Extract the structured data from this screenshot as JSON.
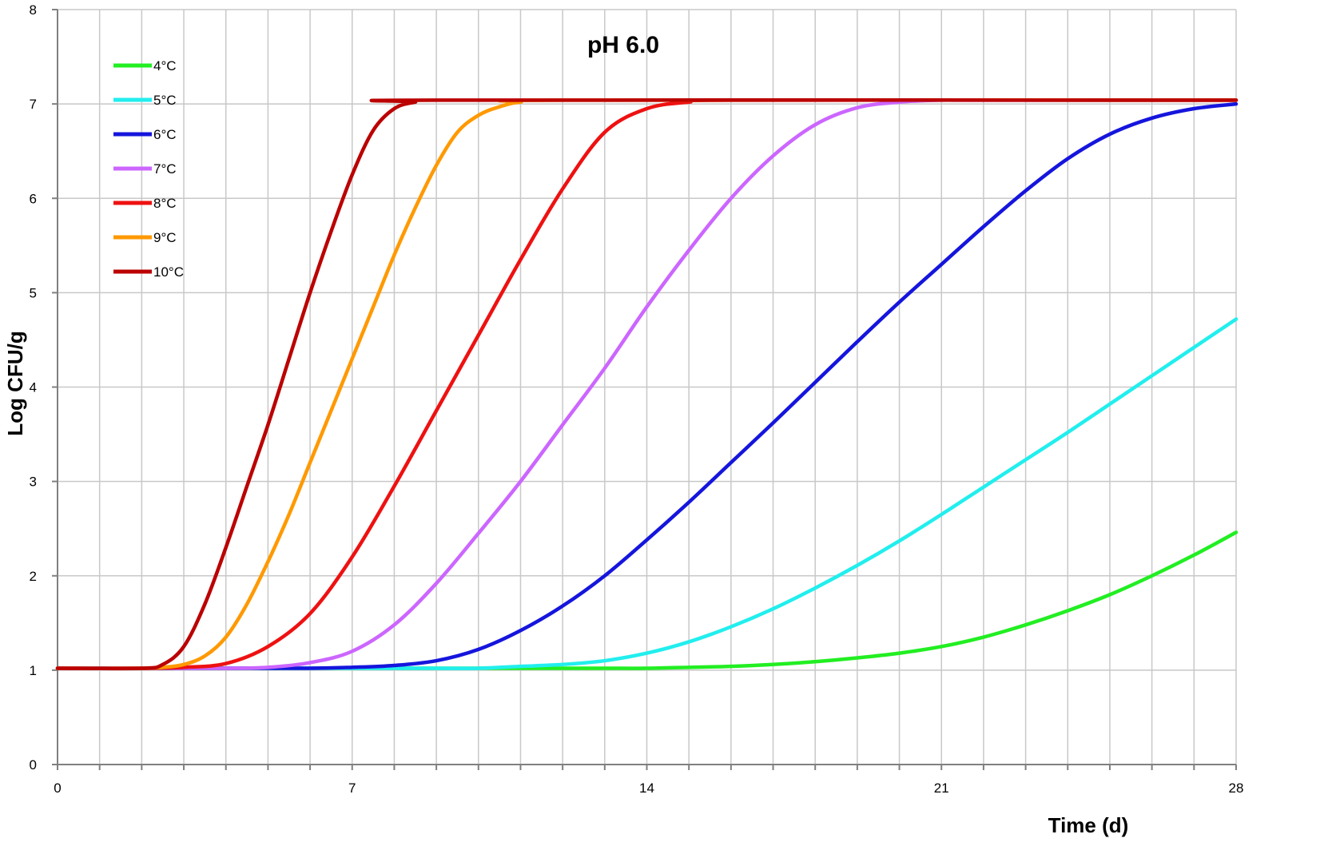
{
  "chart_data": {
    "type": "line",
    "title": "pH 6.0",
    "xlabel": "Time (d)",
    "ylabel": "Log CFU/g",
    "xlim": [
      0,
      28
    ],
    "ylim": [
      0,
      8
    ],
    "x_ticks": [
      0,
      7,
      14,
      21,
      28
    ],
    "y_ticks": [
      0,
      1,
      2,
      3,
      4,
      5,
      6,
      7,
      8
    ],
    "grid": true,
    "legend_position": "top-left",
    "series": [
      {
        "name": "4°C",
        "color": "#22EE22",
        "x": [
          0,
          2,
          4,
          6,
          8,
          10,
          12,
          13,
          14,
          15,
          16,
          17,
          18,
          19,
          20,
          21,
          22,
          23,
          24,
          25,
          26,
          27,
          28
        ],
        "values": [
          1.02,
          1.02,
          1.02,
          1.02,
          1.02,
          1.02,
          1.02,
          1.02,
          1.02,
          1.03,
          1.04,
          1.06,
          1.09,
          1.13,
          1.18,
          1.25,
          1.35,
          1.48,
          1.63,
          1.8,
          2.0,
          2.22,
          2.46
        ]
      },
      {
        "name": "5°C",
        "color": "#22EEEE",
        "x": [
          0,
          2,
          4,
          6,
          8,
          9,
          10,
          11,
          12,
          13,
          14,
          15,
          16,
          17,
          18,
          19,
          20,
          21,
          22,
          23,
          24,
          25,
          26,
          27,
          28
        ],
        "values": [
          1.02,
          1.02,
          1.02,
          1.02,
          1.02,
          1.02,
          1.02,
          1.04,
          1.06,
          1.1,
          1.18,
          1.3,
          1.46,
          1.65,
          1.87,
          2.11,
          2.37,
          2.65,
          2.94,
          3.23,
          3.52,
          3.82,
          4.12,
          4.42,
          4.72
        ]
      },
      {
        "name": "6°C",
        "color": "#1515DD",
        "x": [
          0,
          2,
          4,
          6,
          7,
          8,
          9,
          10,
          11,
          12,
          13,
          14,
          15,
          16,
          17,
          18,
          19,
          20,
          21,
          22,
          23,
          24,
          25,
          26,
          27,
          28
        ],
        "values": [
          1.02,
          1.02,
          1.02,
          1.02,
          1.03,
          1.05,
          1.1,
          1.22,
          1.42,
          1.68,
          2.0,
          2.38,
          2.78,
          3.2,
          3.62,
          4.05,
          4.48,
          4.9,
          5.3,
          5.7,
          6.08,
          6.42,
          6.68,
          6.85,
          6.95,
          7.0
        ]
      },
      {
        "name": "7°C",
        "color": "#CC66FF",
        "x": [
          0,
          2,
          4,
          5,
          6,
          7,
          8,
          9,
          10,
          11,
          12,
          13,
          14,
          15,
          16,
          17,
          18,
          19,
          20,
          21,
          22,
          28
        ],
        "values": [
          1.02,
          1.02,
          1.02,
          1.03,
          1.08,
          1.2,
          1.48,
          1.92,
          2.45,
          3.0,
          3.6,
          4.2,
          4.85,
          5.45,
          6.0,
          6.45,
          6.78,
          6.96,
          7.02,
          7.04,
          7.04,
          7.04
        ]
      },
      {
        "name": "8°C",
        "color": "#EE1111",
        "x": [
          0,
          2,
          3,
          4,
          5,
          6,
          7,
          8,
          9,
          10,
          11,
          12,
          13,
          14,
          15,
          16,
          28
        ],
        "values": [
          1.02,
          1.02,
          1.03,
          1.07,
          1.25,
          1.6,
          2.2,
          2.95,
          3.75,
          4.55,
          5.35,
          6.1,
          6.7,
          6.95,
          7.02,
          7.04,
          7.04
        ]
      },
      {
        "name": "9°C",
        "color": "#FF9900",
        "x": [
          0,
          2,
          2.5,
          3,
          3.5,
          4,
          4.5,
          5,
          5.5,
          6,
          6.5,
          7,
          7.5,
          8,
          8.5,
          9,
          9.5,
          10,
          10.5,
          11,
          12,
          28
        ],
        "values": [
          1.02,
          1.02,
          1.03,
          1.06,
          1.15,
          1.35,
          1.7,
          2.15,
          2.65,
          3.2,
          3.75,
          4.3,
          4.85,
          5.4,
          5.9,
          6.35,
          6.7,
          6.88,
          6.97,
          7.02,
          7.04,
          7.04
        ]
      },
      {
        "name": "10°C",
        "color": "#BB0000",
        "x": [
          0,
          2,
          2.5,
          3,
          3.5,
          4,
          4.5,
          5,
          5.5,
          6,
          6.5,
          7,
          7.5,
          8,
          8.5,
          9,
          28
        ],
        "values": [
          1.02,
          1.02,
          1.06,
          1.25,
          1.7,
          2.3,
          2.95,
          3.6,
          4.3,
          5.0,
          5.65,
          6.25,
          6.72,
          6.95,
          7.02,
          7.04,
          7.04
        ]
      }
    ]
  }
}
